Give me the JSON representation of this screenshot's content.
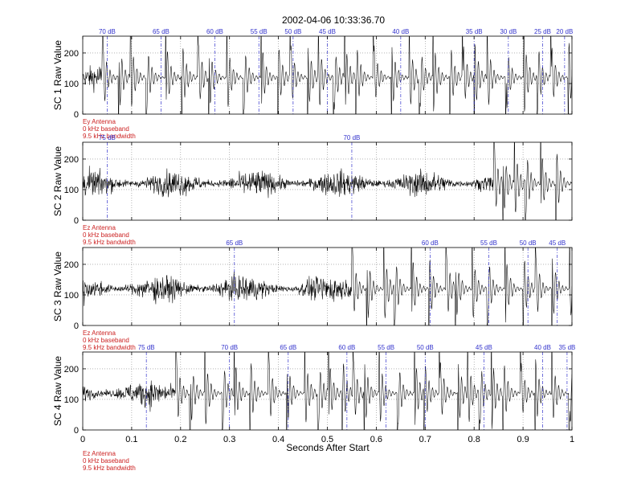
{
  "title": "2002-04-06 10:33:36.70",
  "chart_data": {
    "type": "line",
    "title": "2002-04-06 10:33:36.70",
    "xlabel": "Seconds After Start",
    "xlim": [
      0,
      1
    ],
    "x_ticks": [
      "0",
      "0.1",
      "0.2",
      "0.3",
      "0.4",
      "0.5",
      "0.6",
      "0.7",
      "0.8",
      "0.9",
      "1"
    ],
    "y_ticks": [
      "0",
      "100",
      "200"
    ],
    "grid": true,
    "colors": {
      "waveform": "#000000",
      "gain_markers": "#3333cc",
      "annotation": "#cc2222",
      "grid": "#888888"
    },
    "panels": [
      {
        "ylabel": "SC 1 Raw Value",
        "ylim": [
          0,
          255
        ],
        "annotation": [
          "Ey Antenna",
          "0 kHz baseband",
          "9.5 kHz bandwidth"
        ],
        "gain_steps": [
          {
            "label": "70 dB",
            "x": 0.05
          },
          {
            "label": "65 dB",
            "x": 0.16
          },
          {
            "label": "60 dB",
            "x": 0.27
          },
          {
            "label": "55 dB",
            "x": 0.36
          },
          {
            "label": "50 dB",
            "x": 0.43
          },
          {
            "label": "45 dB",
            "x": 0.5
          },
          {
            "label": "40 dB",
            "x": 0.65
          },
          {
            "label": "35 dB",
            "x": 0.8
          },
          {
            "label": "30 dB",
            "x": 0.87
          },
          {
            "label": "25 dB",
            "x": 0.94
          },
          {
            "label": "20 dB",
            "x": 0.985
          }
        ],
        "regime": {
          "noise_until": 0.04,
          "transients_from": 0.04,
          "settle_level": 120
        }
      },
      {
        "ylabel": "SC 2 Raw Value",
        "ylim": [
          0,
          255
        ],
        "annotation": [
          "Ez Antenna",
          "0 kHz baseband",
          "9.5 kHz bandwidth"
        ],
        "gain_steps": [
          {
            "label": "75 dB",
            "x": 0.05
          },
          {
            "label": "70 dB",
            "x": 0.55
          }
        ],
        "regime": {
          "noise_until": 0.84,
          "transients_from": 0.84,
          "settle_level": 120
        }
      },
      {
        "ylabel": "SC 3 Raw Value",
        "ylim": [
          0,
          255
        ],
        "annotation": [
          "Ez Antenna",
          "0 kHz baseband",
          "9.5 kHz bandwidth"
        ],
        "gain_steps": [
          {
            "label": "65 dB",
            "x": 0.31
          },
          {
            "label": "60 dB",
            "x": 0.71
          },
          {
            "label": "55 dB",
            "x": 0.83
          },
          {
            "label": "50 dB",
            "x": 0.91
          },
          {
            "label": "45 dB",
            "x": 0.97
          }
        ],
        "regime": {
          "noise_until": 0.55,
          "transients_from": 0.55,
          "settle_level": 120
        }
      },
      {
        "ylabel": "SC 4 Raw Value",
        "ylim": [
          0,
          255
        ],
        "annotation": [
          "Ez Antenna",
          "0 kHz baseband",
          "9.5 kHz bandwidth"
        ],
        "gain_steps": [
          {
            "label": "75 dB",
            "x": 0.13
          },
          {
            "label": "70 dB",
            "x": 0.3
          },
          {
            "label": "65 dB",
            "x": 0.42
          },
          {
            "label": "60 dB",
            "x": 0.54
          },
          {
            "label": "55 dB",
            "x": 0.62
          },
          {
            "label": "50 dB",
            "x": 0.7
          },
          {
            "label": "45 dB",
            "x": 0.82
          },
          {
            "label": "40 dB",
            "x": 0.94
          },
          {
            "label": "35 dB",
            "x": 0.99
          }
        ],
        "regime": {
          "noise_until": 0.19,
          "transients_from": 0.19,
          "settle_level": 120
        }
      }
    ]
  }
}
